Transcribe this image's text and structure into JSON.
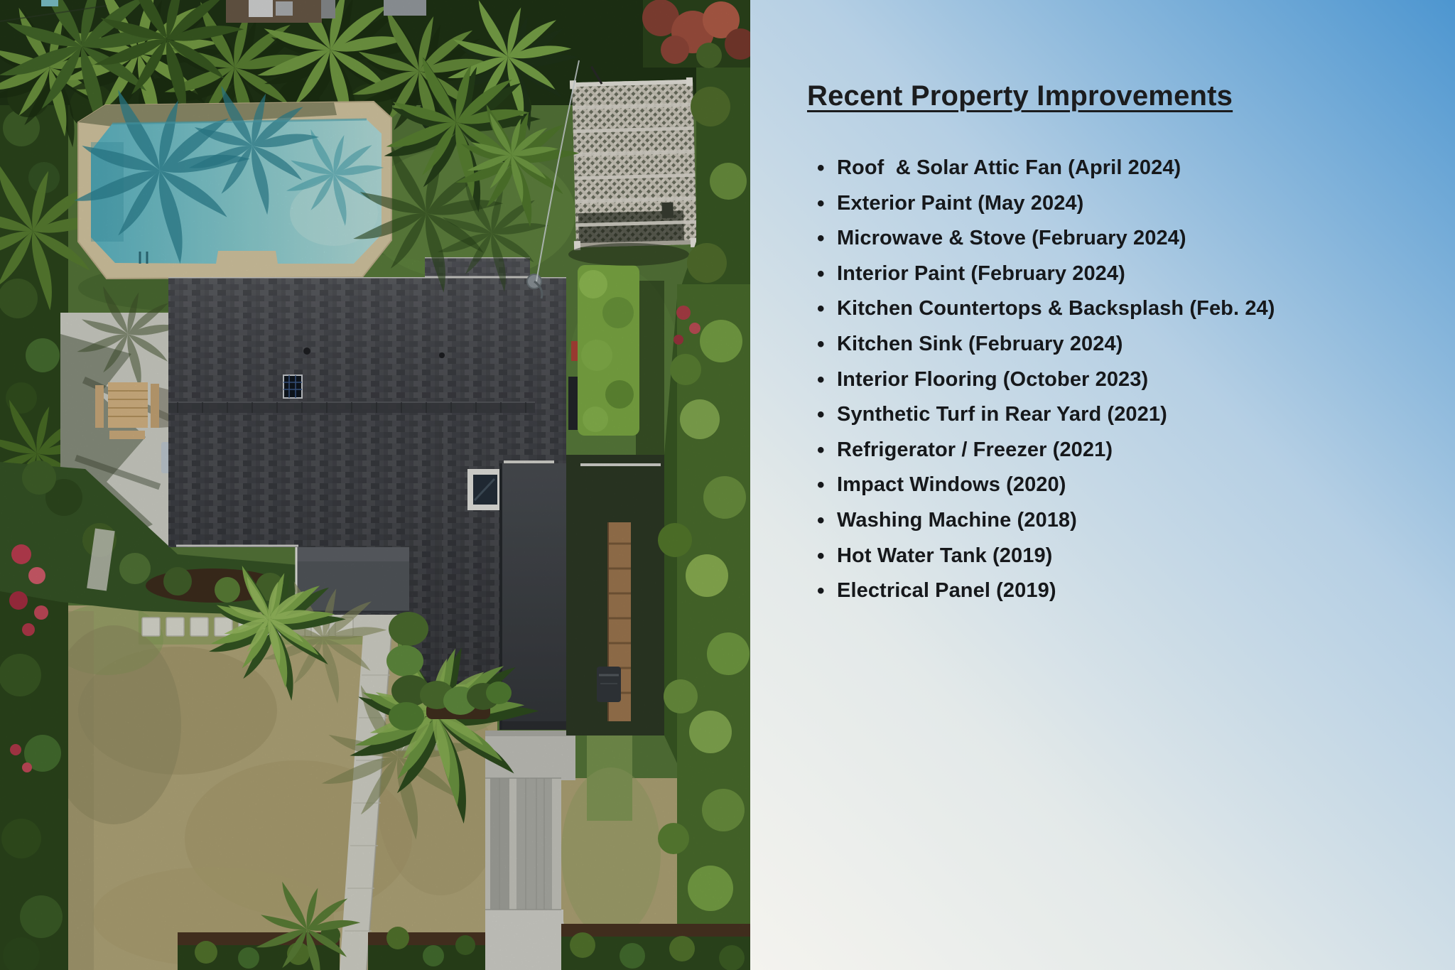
{
  "photo": {
    "kind": "aerial-drone-photo-of-property",
    "colors": {
      "pool_water": "#7ecbd2",
      "pool_deck": "#d9cba6",
      "synthetic_turf": "#5b7c3a",
      "dry_front_lawn": "#b6aa7c",
      "roof_shingle": "#46484d",
      "garage_roof": "#3e4246",
      "hedge_dark": "#2c471c",
      "hedge_bright": "#8eb554",
      "walkway_concrete": "#d7d7cd",
      "driveway_pavers": "#c7c7c0",
      "pergola_lattice": "#d9d5c9"
    },
    "features": [
      "swimming-pool",
      "pool-deck",
      "main-house-roof",
      "solar-attic-fan",
      "skylight",
      "garage-roof",
      "patio-cover-roof",
      "pergola",
      "picnic-table",
      "concrete-patio",
      "stepping-stones",
      "front-walkway",
      "paver-driveway",
      "synthetic-turf",
      "front-lawn",
      "perimeter-hedges",
      "palm-trees",
      "red-flowering-shrubs",
      "wood-fence",
      "trash-bin",
      "power-line"
    ]
  },
  "panel": {
    "title": "Recent Property Improvements",
    "items": [
      "Roof  & Solar Attic Fan (April 2024)",
      "Exterior Paint (May 2024)",
      "Microwave & Stove (February 2024)",
      "Interior Paint (February 2024)",
      "Kitchen Countertops & Backsplash (Feb. 24)",
      "Kitchen Sink (February 2024)",
      "Interior Flooring (October 2023)",
      "Synthetic Turf in Rear Yard (2021)",
      "Refrigerator / Freezer (2021)",
      "Impact Windows (2020)",
      "Washing Machine (2018)",
      "Hot Water Tank (2019)",
      "Electrical Panel (2019)"
    ],
    "text_color": "#16181b",
    "gradient_start": "#f4f3ee",
    "gradient_end": "#4d96d0"
  }
}
